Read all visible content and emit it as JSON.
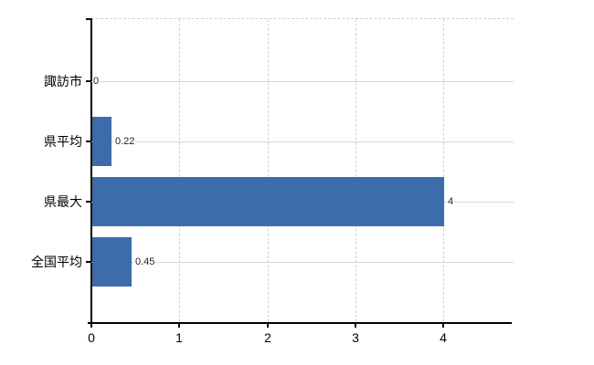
{
  "chart_data": {
    "type": "bar",
    "orientation": "horizontal",
    "title": "",
    "categories": [
      "諏訪市",
      "県平均",
      "県最大",
      "全国平均"
    ],
    "values": [
      0,
      0.22,
      4,
      0.45
    ],
    "value_labels": [
      "0",
      "0.22",
      "4",
      "0.45"
    ],
    "x_tick_labels": [
      "0",
      "1",
      "2",
      "3",
      "4"
    ],
    "x_tick_values": [
      0,
      1,
      2,
      3,
      4
    ],
    "xlim": [
      0,
      4.8
    ],
    "legend": "none",
    "grid": {
      "horizontal": "solid",
      "vertical": "dashed",
      "top_border": "dashed"
    },
    "colors": {
      "bar": "#3d6cab",
      "h_grid": "#d2dcd2",
      "v_grid": "#d3d0da",
      "top_border": "#cdcdd4",
      "axis": "#000000",
      "value_label": "#222222",
      "tick_label": "#000000",
      "background": "#ffffff"
    }
  }
}
